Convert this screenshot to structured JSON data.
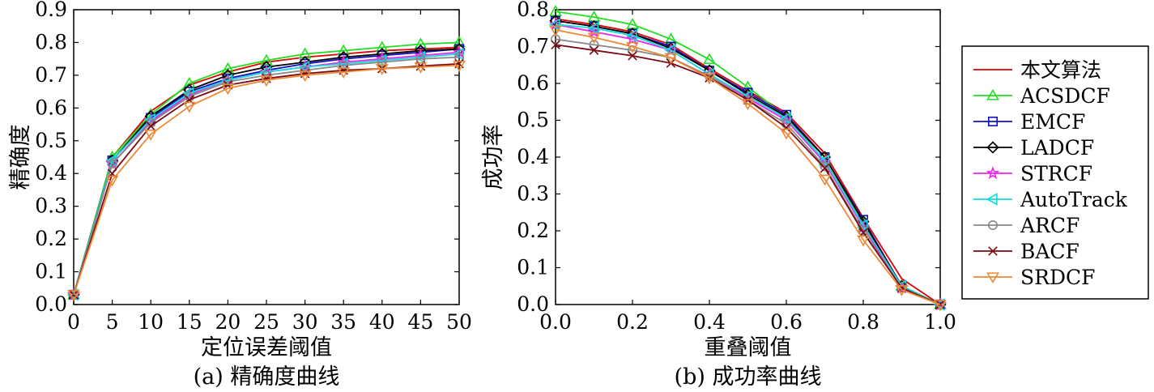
{
  "series_styles": [
    {
      "name": "本文算法",
      "color": "#e00000",
      "marker": "none"
    },
    {
      "name": "ACSDCF",
      "color": "#22dd22",
      "marker": "triangle-up"
    },
    {
      "name": "EMCF",
      "color": "#1010c0",
      "marker": "square"
    },
    {
      "name": "LADCF",
      "color": "#000000",
      "marker": "diamond"
    },
    {
      "name": "STRCF",
      "color": "#ee22ee",
      "marker": "star"
    },
    {
      "name": "AutoTrack",
      "color": "#11dddd",
      "marker": "triangle-left"
    },
    {
      "name": "ARCF",
      "color": "#888888",
      "marker": "circle"
    },
    {
      "name": "BACF",
      "color": "#7a0a14",
      "marker": "x"
    },
    {
      "name": "SRDCF",
      "color": "#ee8833",
      "marker": "triangle-down"
    }
  ],
  "legend_position": "right",
  "chart_data": [
    {
      "type": "line",
      "title": "(a) 精确度曲线",
      "xlabel": "定位误差阈值",
      "ylabel": "精确度",
      "xlim": [
        0,
        50
      ],
      "ylim": [
        0,
        0.9
      ],
      "xticks": [
        "0",
        "5",
        "10",
        "15",
        "20",
        "25",
        "30",
        "35",
        "40",
        "45",
        "50"
      ],
      "yticks": [
        "0.0",
        "0.1",
        "0.2",
        "0.3",
        "0.4",
        "0.5",
        "0.6",
        "0.7",
        "0.8",
        "0.9"
      ],
      "grid": false,
      "x": [
        0,
        5,
        10,
        15,
        20,
        25,
        30,
        35,
        40,
        45,
        50
      ],
      "series": [
        {
          "name": "本文算法",
          "values": [
            0.03,
            0.45,
            0.59,
            0.67,
            0.71,
            0.74,
            0.755,
            0.765,
            0.775,
            0.78,
            0.785
          ]
        },
        {
          "name": "ACSDCF",
          "values": [
            0.03,
            0.45,
            0.58,
            0.675,
            0.72,
            0.745,
            0.765,
            0.775,
            0.785,
            0.795,
            0.8
          ]
        },
        {
          "name": "EMCF",
          "values": [
            0.03,
            0.44,
            0.57,
            0.65,
            0.69,
            0.715,
            0.735,
            0.75,
            0.76,
            0.77,
            0.78
          ]
        },
        {
          "name": "LADCF",
          "values": [
            0.03,
            0.44,
            0.575,
            0.655,
            0.7,
            0.725,
            0.74,
            0.755,
            0.765,
            0.775,
            0.78
          ]
        },
        {
          "name": "STRCF",
          "values": [
            0.03,
            0.43,
            0.56,
            0.64,
            0.685,
            0.71,
            0.725,
            0.74,
            0.75,
            0.76,
            0.77
          ]
        },
        {
          "name": "AutoTrack",
          "values": [
            0.03,
            0.44,
            0.565,
            0.645,
            0.685,
            0.71,
            0.725,
            0.735,
            0.745,
            0.755,
            0.765
          ]
        },
        {
          "name": "ARCF",
          "values": [
            0.03,
            0.43,
            0.555,
            0.635,
            0.68,
            0.7,
            0.715,
            0.73,
            0.74,
            0.75,
            0.755
          ]
        },
        {
          "name": "BACF",
          "values": [
            0.03,
            0.4,
            0.545,
            0.625,
            0.67,
            0.69,
            0.705,
            0.715,
            0.72,
            0.728,
            0.735
          ]
        },
        {
          "name": "SRDCF",
          "values": [
            0.03,
            0.38,
            0.52,
            0.605,
            0.66,
            0.685,
            0.7,
            0.71,
            0.72,
            0.725,
            0.73
          ]
        }
      ]
    },
    {
      "type": "line",
      "title": "(b) 成功率曲线",
      "xlabel": "重叠阈值",
      "ylabel": "成功率",
      "xlim": [
        0,
        1
      ],
      "ylim": [
        0,
        0.8
      ],
      "xticks": [
        "0.0",
        "0.2",
        "0.4",
        "0.6",
        "0.8",
        "1.0"
      ],
      "yticks": [
        "0.0",
        "0.1",
        "0.2",
        "0.3",
        "0.4",
        "0.5",
        "0.6",
        "0.7",
        "0.8"
      ],
      "grid": false,
      "x": [
        0,
        0.1,
        0.2,
        0.3,
        0.4,
        0.5,
        0.6,
        0.7,
        0.8,
        0.9,
        1.0
      ],
      "series": [
        {
          "name": "本文算法",
          "values": [
            0.775,
            0.76,
            0.74,
            0.705,
            0.64,
            0.58,
            0.52,
            0.41,
            0.235,
            0.07,
            0.0
          ]
        },
        {
          "name": "ACSDCF",
          "values": [
            0.795,
            0.78,
            0.76,
            0.72,
            0.665,
            0.59,
            0.51,
            0.39,
            0.22,
            0.05,
            0.0
          ]
        },
        {
          "name": "EMCF",
          "values": [
            0.77,
            0.755,
            0.735,
            0.7,
            0.635,
            0.575,
            0.515,
            0.4,
            0.23,
            0.05,
            0.0
          ]
        },
        {
          "name": "LADCF",
          "values": [
            0.77,
            0.755,
            0.735,
            0.695,
            0.635,
            0.57,
            0.51,
            0.4,
            0.225,
            0.05,
            0.0
          ]
        },
        {
          "name": "STRCF",
          "values": [
            0.76,
            0.74,
            0.72,
            0.69,
            0.625,
            0.56,
            0.5,
            0.385,
            0.21,
            0.045,
            0.0
          ]
        },
        {
          "name": "AutoTrack",
          "values": [
            0.76,
            0.75,
            0.73,
            0.69,
            0.625,
            0.565,
            0.505,
            0.39,
            0.215,
            0.05,
            0.0
          ]
        },
        {
          "name": "ARCF",
          "values": [
            0.72,
            0.705,
            0.69,
            0.67,
            0.62,
            0.555,
            0.49,
            0.375,
            0.2,
            0.045,
            0.0
          ]
        },
        {
          "name": "BACF",
          "values": [
            0.705,
            0.69,
            0.675,
            0.655,
            0.615,
            0.555,
            0.48,
            0.37,
            0.195,
            0.045,
            0.0
          ]
        },
        {
          "name": "SRDCF",
          "values": [
            0.745,
            0.725,
            0.7,
            0.67,
            0.615,
            0.545,
            0.465,
            0.34,
            0.175,
            0.04,
            0.0
          ]
        }
      ]
    }
  ]
}
